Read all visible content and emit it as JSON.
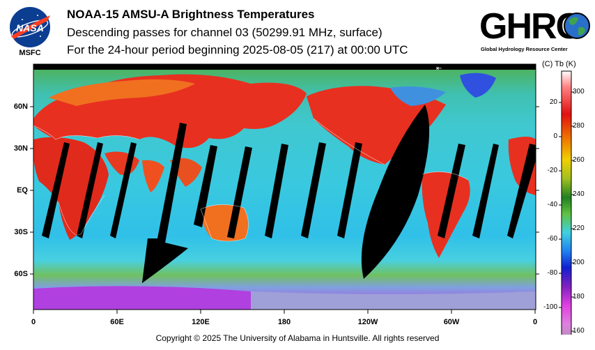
{
  "header": {
    "title": "NOAA-15 AMSU-A Brightness Temperatures",
    "subtitle": "Descending passes for channel 03 (50299.91 MHz, surface)",
    "period": "For the 24-hour period beginning 2025-08-05 (217) at 00:00 UTC"
  },
  "logos": {
    "nasa": {
      "mark": "NASA",
      "label": "MSFC",
      "icon": "nasa-meatball-icon"
    },
    "ghrc": {
      "mark": "GHRC",
      "subtitle": "Global Hydrology Resource Center",
      "icon": "globe-icon"
    }
  },
  "map": {
    "latitude_labels": [
      "60N",
      "30N",
      "EQ",
      "30S",
      "60S"
    ],
    "longitude_labels": [
      "0",
      "60E",
      "120E",
      "180",
      "120W",
      "60W",
      "0"
    ],
    "colors": {
      "cold": "#c040e0",
      "cool": "#40c8e8",
      "mid": "#40b040",
      "warm": "#f07020",
      "hot": "#e02020",
      "no_data": "#000000"
    }
  },
  "colorbar": {
    "header": "(C)  Tb  (K)",
    "celsius_ticks": [
      "20",
      "0",
      "-20",
      "-40",
      "-60",
      "-80",
      "-100"
    ],
    "kelvin_ticks": [
      "300",
      "280",
      "260",
      "240",
      "220",
      "200",
      "180",
      "160"
    ]
  },
  "footer": {
    "copyright": "Copyright © 2025 The University of Alabama in Huntsville.  All rights reserved"
  }
}
